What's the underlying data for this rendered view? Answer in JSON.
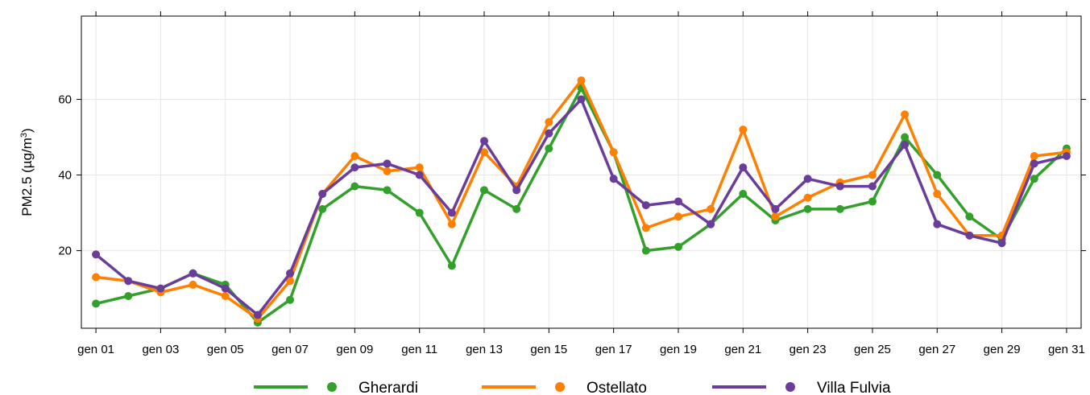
{
  "chart_data": {
    "type": "line",
    "ylabel": "PM2.5 (µg/m³)",
    "ylabel_parts": {
      "main": "PM2.5 (µg/m",
      "sup": "3",
      "close": ")"
    },
    "xlabel": "",
    "title": "",
    "x": [
      "gen 01",
      "gen 02",
      "gen 03",
      "gen 04",
      "gen 05",
      "gen 06",
      "gen 07",
      "gen 08",
      "gen 09",
      "gen 10",
      "gen 11",
      "gen 12",
      "gen 13",
      "gen 14",
      "gen 15",
      "gen 16",
      "gen 17",
      "gen 18",
      "gen 19",
      "gen 20",
      "gen 21",
      "gen 22",
      "gen 23",
      "gen 24",
      "gen 25",
      "gen 26",
      "gen 27",
      "gen 28",
      "gen 29",
      "gen 30",
      "gen 31"
    ],
    "x_tick_labels": [
      "gen 01",
      "gen 03",
      "gen 05",
      "gen 07",
      "gen 09",
      "gen 11",
      "gen 13",
      "gen 15",
      "gen 17",
      "gen 19",
      "gen 21",
      "gen 23",
      "gen 25",
      "gen 27",
      "gen 29",
      "gen 31"
    ],
    "y_ticks": [
      20,
      40,
      60
    ],
    "ylim": [
      -0.5,
      82
    ],
    "grid": true,
    "legend_position": "bottom",
    "series": [
      {
        "name": "Gherardi",
        "color": "#33a02c",
        "values": [
          6,
          8,
          10,
          14,
          11,
          1,
          7,
          31,
          37,
          36,
          30,
          16,
          36,
          31,
          47,
          63,
          46,
          20,
          21,
          27,
          35,
          28,
          31,
          31,
          33,
          50,
          40,
          29,
          23,
          39,
          47
        ]
      },
      {
        "name": "Ostellato",
        "color": "#ff7f00",
        "values": [
          13,
          12,
          9,
          11,
          8,
          2,
          12,
          35,
          45,
          41,
          42,
          27,
          46,
          37,
          54,
          65,
          46,
          26,
          29,
          31,
          52,
          29,
          34,
          38,
          40,
          56,
          35,
          24,
          24,
          45,
          46
        ]
      },
      {
        "name": "Villa Fulvia",
        "color": "#6a3d9a",
        "values": [
          19,
          12,
          10,
          14,
          10,
          3,
          14,
          35,
          42,
          43,
          40,
          30,
          49,
          36,
          51,
          60,
          39,
          32,
          33,
          27,
          42,
          31,
          39,
          37,
          37,
          48,
          27,
          24,
          22,
          43,
          45
        ]
      }
    ]
  }
}
